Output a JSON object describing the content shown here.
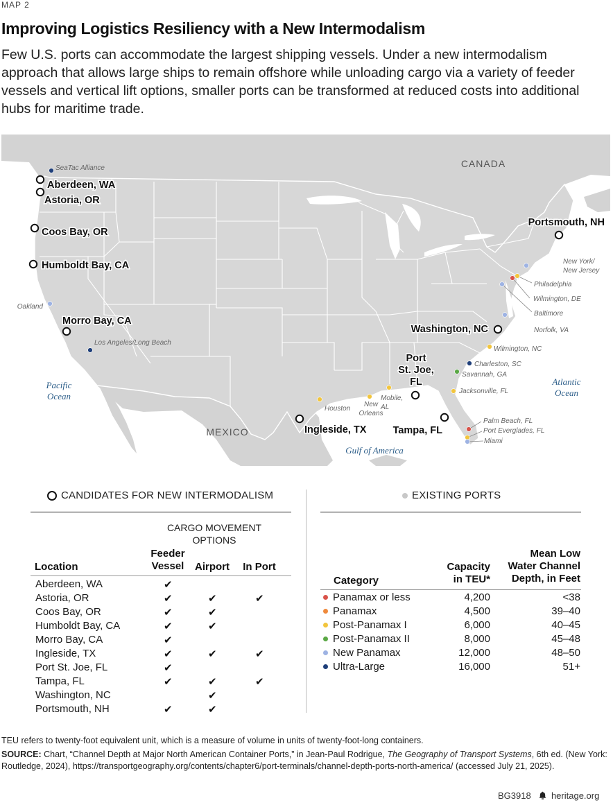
{
  "header": {
    "kicker": "MAP 2",
    "title": "Improving Logistics Resiliency with a New Intermodalism",
    "intro": "Few U.S. ports can accommodate the largest shipping vessels. Under a new intermodalism approach that allows large ships to remain offshore while unloading cargo via a variety of feeder vessels and vertical lift options, smaller ports can be transformed at reduced costs into additional hubs for maritime trade."
  },
  "map": {
    "country_labels": [
      "CANADA",
      "MEXICO"
    ],
    "water_labels": [
      {
        "id": "pacific",
        "lines": [
          "Pacific",
          "Ocean"
        ]
      },
      {
        "id": "atlantic",
        "lines": [
          "Atlantic",
          "Ocean"
        ]
      },
      {
        "id": "gulf",
        "lines": [
          "Gulf of America"
        ]
      }
    ],
    "candidates": [
      {
        "name": "Aberdeen, WA"
      },
      {
        "name": "Astoria, OR"
      },
      {
        "name": "Coos Bay, OR"
      },
      {
        "name": "Humboldt Bay, CA"
      },
      {
        "name": "Morro Bay, CA"
      },
      {
        "name": "Portsmouth, NH"
      },
      {
        "name": "Washington, NC"
      },
      {
        "name": "Port St. Joe, FL",
        "lines": [
          "Port",
          "St. Joe,",
          "FL"
        ]
      },
      {
        "name": "Ingleside, TX"
      },
      {
        "name": "Tampa, FL"
      }
    ],
    "existing_ports": [
      {
        "name": "SeaTac Alliance",
        "category": "Ultra-Large"
      },
      {
        "name": "Oakland",
        "category": "New Panamax"
      },
      {
        "name": "Los Angeles/Long Beach",
        "category": "Ultra-Large"
      },
      {
        "name": "Houston",
        "category": "Post-Panamax I"
      },
      {
        "name": "New Orleans",
        "category": "Post-Panamax I",
        "lines": [
          "New",
          "Orleans"
        ]
      },
      {
        "name": "Mobile, AL",
        "category": "Post-Panamax I",
        "lines": [
          "Mobile,",
          "AL"
        ]
      },
      {
        "name": "Jacksonville, FL",
        "category": "Post-Panamax I"
      },
      {
        "name": "Savannah, GA",
        "category": "Post-Panamax II"
      },
      {
        "name": "Charleston, SC",
        "category": "Ultra-Large"
      },
      {
        "name": "Wilmington, NC",
        "category": "Post-Panamax I"
      },
      {
        "name": "Norfolk, VA",
        "category": "New Panamax"
      },
      {
        "name": "Baltimore",
        "category": "New Panamax"
      },
      {
        "name": "Wilmington, DE",
        "category": "Panamax or less"
      },
      {
        "name": "Philadelphia",
        "category": "Post-Panamax I"
      },
      {
        "name": "New York/ New Jersey",
        "category": "New Panamax",
        "lines": [
          "New York/",
          "New Jersey"
        ]
      },
      {
        "name": "Palm Beach, FL",
        "category": "Panamax or less"
      },
      {
        "name": "Port Everglades, FL",
        "category": "Post-Panamax I"
      },
      {
        "name": "Miami",
        "category": "New Panamax"
      }
    ]
  },
  "left_table": {
    "legend": "CANDIDATES FOR NEW INTERMODALISM",
    "group_header": [
      "CARGO MOVEMENT",
      "OPTIONS"
    ],
    "col_location": "Location",
    "col_feeder": [
      "Feeder",
      "Vessel"
    ],
    "col_airport": "Airport",
    "col_inport": "In Port",
    "check_glyph": "✔",
    "rows": [
      {
        "location": "Aberdeen, WA",
        "feeder": true,
        "airport": false,
        "inport": false
      },
      {
        "location": "Astoria, OR",
        "feeder": true,
        "airport": true,
        "inport": true
      },
      {
        "location": "Coos Bay, OR",
        "feeder": true,
        "airport": true,
        "inport": false
      },
      {
        "location": "Humboldt Bay, CA",
        "feeder": true,
        "airport": true,
        "inport": false
      },
      {
        "location": "Morro Bay, CA",
        "feeder": true,
        "airport": false,
        "inport": false
      },
      {
        "location": "Ingleside, TX",
        "feeder": true,
        "airport": true,
        "inport": true
      },
      {
        "location": "Port St. Joe, FL",
        "feeder": true,
        "airport": false,
        "inport": false
      },
      {
        "location": "Tampa, FL",
        "feeder": true,
        "airport": true,
        "inport": true
      },
      {
        "location": "Washington, NC",
        "feeder": false,
        "airport": true,
        "inport": false
      },
      {
        "location": "Portsmouth, NH",
        "feeder": true,
        "airport": true,
        "inport": false
      }
    ]
  },
  "right_table": {
    "legend": "EXISTING PORTS",
    "col_category": "Category",
    "col_capacity": [
      "Capacity",
      "in TEU*"
    ],
    "col_depth": [
      "Mean Low",
      "Water Channel",
      "Depth, in Feet"
    ],
    "rows": [
      {
        "category": "Panamax or less",
        "capacity": "4,200",
        "depth": "<38",
        "color": "#d9534a"
      },
      {
        "category": "Panamax",
        "capacity": "4,500",
        "depth": "39–40",
        "color": "#ef8a3c"
      },
      {
        "category": "Post-Panamax I",
        "capacity": "6,000",
        "depth": "40–45",
        "color": "#f2c53d"
      },
      {
        "category": "Post-Panamax II",
        "capacity": "8,000",
        "depth": "45–48",
        "color": "#5aa845"
      },
      {
        "category": "New Panamax",
        "capacity": "12,000",
        "depth": "48–50",
        "color": "#9eb3e3"
      },
      {
        "category": "Ultra-Large",
        "capacity": "16,000",
        "depth": "51+",
        "color": "#1f3f7a"
      }
    ]
  },
  "notes": {
    "teu": "TEU refers to twenty-foot equivalent unit, which is a measure of volume in units of twenty-foot-long containers.",
    "source_label": "SOURCE:",
    "source_pre": " Chart, “Channel Depth at Major North American Container Ports,” in Jean-Paul Rodrigue, ",
    "source_book": "The Geography of Transport Systems",
    "source_post": ", 6th ed. (New York: Routledge, 2024), https://transportgeography.org/contents/chapter6/port-terminals/channel-depth-ports-north-america/ (accessed July 21, 2025)."
  },
  "footer": {
    "code": "BG3918",
    "site": "heritage.org",
    "bell_icon": "bell-icon"
  }
}
